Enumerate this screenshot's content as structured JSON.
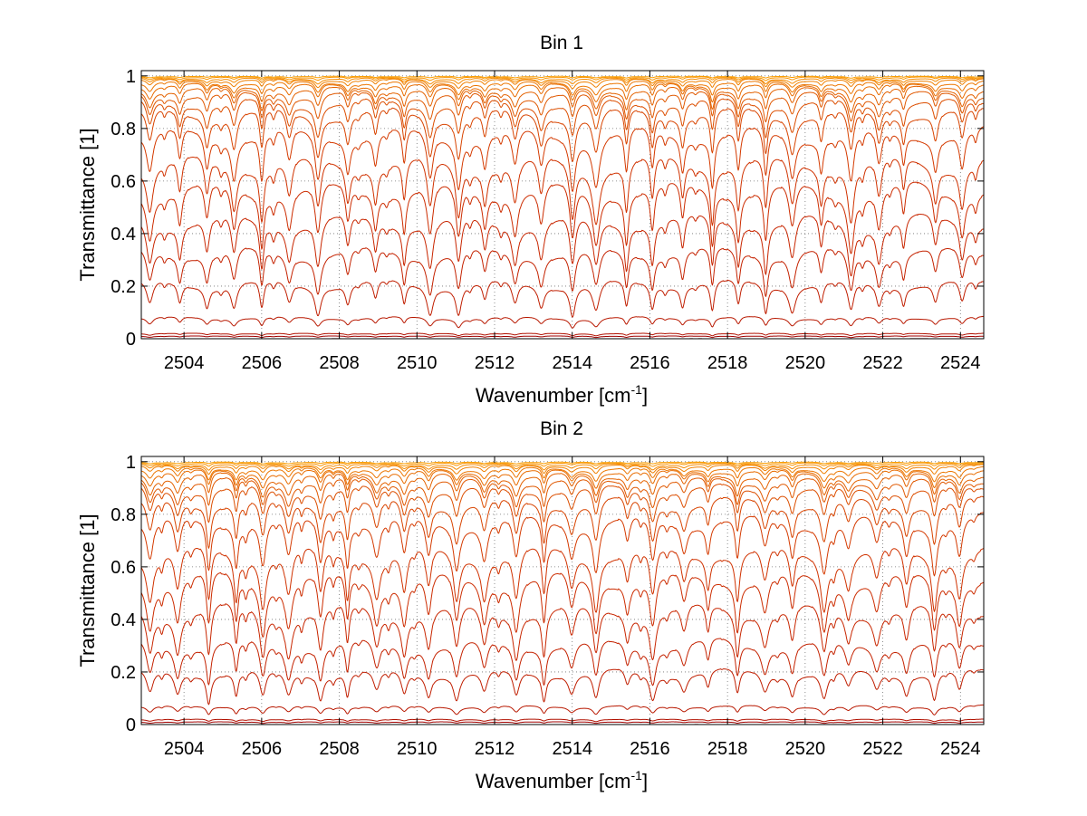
{
  "chart_data": [
    {
      "type": "line",
      "title": "Bin 1",
      "xlabel": "Wavenumber [cm",
      "xlabel_sup": "-1",
      "xlabel_end": "]",
      "ylabel": "Transmittance [1]",
      "xlim": [
        2502.9,
        2524.6
      ],
      "ylim": [
        0,
        1.02
      ],
      "xticks": [
        "2504",
        "2506",
        "2508",
        "2510",
        "2512",
        "2514",
        "2516",
        "2518",
        "2520",
        "2522",
        "2524"
      ],
      "yticks": [
        "0",
        "0.2",
        "0.4",
        "0.6",
        "0.8",
        "1"
      ],
      "grid": true,
      "line_period_cm-1": 0.72,
      "series": [
        {
          "baseline": 0.0,
          "dip_depth": 0.003,
          "color": "#8b0000"
        },
        {
          "baseline": 0.01,
          "dip_depth": 0.005,
          "color": "#a00000"
        },
        {
          "baseline": 0.02,
          "dip_depth": 0.008,
          "color": "#b01000"
        },
        {
          "baseline": 0.08,
          "dip_depth": 0.035,
          "color": "#b81800"
        },
        {
          "baseline": 0.21,
          "dip_depth": 0.12,
          "color": "#c01e00"
        },
        {
          "baseline": 0.33,
          "dip_depth": 0.16,
          "color": "#c42200"
        },
        {
          "baseline": 0.45,
          "dip_depth": 0.2,
          "color": "#c82600"
        },
        {
          "baseline": 0.57,
          "dip_depth": 0.22,
          "color": "#cc2c00"
        },
        {
          "baseline": 0.67,
          "dip_depth": 0.22,
          "color": "#d03200"
        },
        {
          "baseline": 0.78,
          "dip_depth": 0.2,
          "color": "#d43a00"
        },
        {
          "baseline": 0.86,
          "dip_depth": 0.17,
          "color": "#d84400"
        },
        {
          "baseline": 0.9,
          "dip_depth": 0.13,
          "color": "#dc4e00"
        },
        {
          "baseline": 0.93,
          "dip_depth": 0.1,
          "color": "#e05800"
        },
        {
          "baseline": 0.95,
          "dip_depth": 0.08,
          "color": "#e46200"
        },
        {
          "baseline": 0.965,
          "dip_depth": 0.06,
          "color": "#e86c00"
        },
        {
          "baseline": 0.975,
          "dip_depth": 0.045,
          "color": "#ec7600"
        },
        {
          "baseline": 0.985,
          "dip_depth": 0.03,
          "color": "#f08000"
        },
        {
          "baseline": 0.99,
          "dip_depth": 0.02,
          "color": "#f48a00"
        },
        {
          "baseline": 0.995,
          "dip_depth": 0.012,
          "color": "#f89400"
        },
        {
          "baseline": 0.998,
          "dip_depth": 0.006,
          "color": "#fb9e00"
        }
      ]
    },
    {
      "type": "line",
      "title": "Bin 2",
      "xlabel": "Wavenumber [cm",
      "xlabel_sup": "-1",
      "xlabel_end": "]",
      "ylabel": "Transmittance [1]",
      "xlim": [
        2502.9,
        2524.6
      ],
      "ylim": [
        0,
        1.02
      ],
      "xticks": [
        "2504",
        "2506",
        "2508",
        "2510",
        "2512",
        "2514",
        "2516",
        "2518",
        "2520",
        "2522",
        "2524"
      ],
      "yticks": [
        "0",
        "0.2",
        "0.4",
        "0.6",
        "0.8",
        "1"
      ],
      "grid": true,
      "line_period_cm-1": 0.72,
      "series": [
        {
          "baseline": 0.0,
          "dip_depth": 0.003,
          "color": "#8b0000"
        },
        {
          "baseline": 0.01,
          "dip_depth": 0.005,
          "color": "#a00000"
        },
        {
          "baseline": 0.02,
          "dip_depth": 0.008,
          "color": "#b01000"
        },
        {
          "baseline": 0.07,
          "dip_depth": 0.03,
          "color": "#b81800"
        },
        {
          "baseline": 0.2,
          "dip_depth": 0.11,
          "color": "#c01e00"
        },
        {
          "baseline": 0.31,
          "dip_depth": 0.15,
          "color": "#c42200"
        },
        {
          "baseline": 0.44,
          "dip_depth": 0.19,
          "color": "#c82600"
        },
        {
          "baseline": 0.56,
          "dip_depth": 0.21,
          "color": "#cc2c00"
        },
        {
          "baseline": 0.66,
          "dip_depth": 0.21,
          "color": "#d03200"
        },
        {
          "baseline": 0.78,
          "dip_depth": 0.19,
          "color": "#d43a00"
        },
        {
          "baseline": 0.85,
          "dip_depth": 0.16,
          "color": "#d84400"
        },
        {
          "baseline": 0.9,
          "dip_depth": 0.12,
          "color": "#dc4e00"
        },
        {
          "baseline": 0.93,
          "dip_depth": 0.1,
          "color": "#e05800"
        },
        {
          "baseline": 0.95,
          "dip_depth": 0.08,
          "color": "#e46200"
        },
        {
          "baseline": 0.965,
          "dip_depth": 0.06,
          "color": "#e86c00"
        },
        {
          "baseline": 0.975,
          "dip_depth": 0.045,
          "color": "#ec7600"
        },
        {
          "baseline": 0.985,
          "dip_depth": 0.03,
          "color": "#f08000"
        },
        {
          "baseline": 0.99,
          "dip_depth": 0.02,
          "color": "#f48a00"
        },
        {
          "baseline": 0.995,
          "dip_depth": 0.012,
          "color": "#f89400"
        },
        {
          "baseline": 0.998,
          "dip_depth": 0.006,
          "color": "#fb9e00"
        }
      ]
    }
  ]
}
